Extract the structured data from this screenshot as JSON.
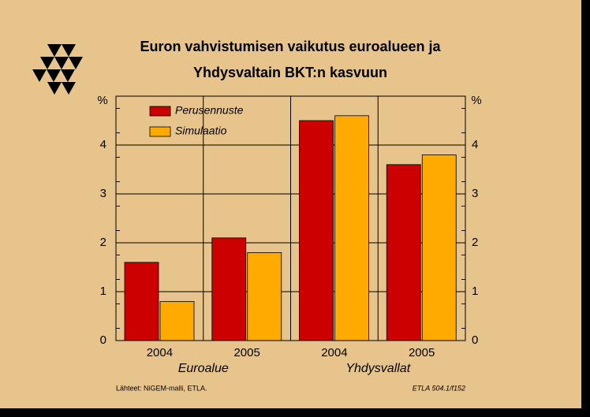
{
  "chart_data": {
    "type": "bar",
    "title": [
      "Euron vahvistumisen vaikutus euroalueen ja",
      "Yhdysvaltain BKT:n kasvuun"
    ],
    "y_unit": "%",
    "categories": [
      "2004",
      "2005",
      "2004",
      "2005"
    ],
    "groups": [
      "Euroalue",
      "Yhdysvallat"
    ],
    "series": [
      {
        "name": "Perusennuste",
        "color": "#cc0000",
        "values": [
          1.6,
          2.1,
          4.5,
          3.6
        ]
      },
      {
        "name": "Simulaatio",
        "color": "#ffaa00",
        "values": [
          0.8,
          1.8,
          4.6,
          3.8
        ]
      }
    ],
    "ylim": [
      0,
      5
    ],
    "yticks": [
      0,
      1,
      2,
      3,
      4
    ],
    "grid": true,
    "legend": "upper left",
    "source": "Lähteet:   NiGEM-malli, ETLA.",
    "code": "ETLA 504.1/f152"
  }
}
